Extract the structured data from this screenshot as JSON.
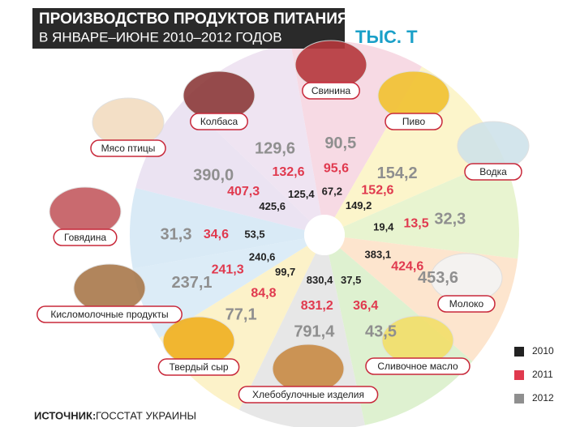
{
  "chart_data": {
    "type": "radial",
    "title": "ПРОИЗВОДСТВО ПРОДУКТОВ ПИТАНИЯ",
    "subtitle": "В ЯНВАРЕ–ИЮНЕ 2010–2012 ГОДОВ",
    "unit": "ТЫС. Т",
    "source_label": "ИСТОЧНИК:",
    "source": "ГОССТАТ УКРАИНЫ",
    "categories": [
      "Свинина",
      "Пиво",
      "Водка",
      "Молоко",
      "Сливочное масло",
      "Хлебобулочные изделия",
      "Твердый сыр",
      "Кисломолочные продукты",
      "Говядина",
      "Мясо птицы",
      "Колбаса"
    ],
    "series": [
      {
        "name": "2010",
        "color": "#222222",
        "values": [
          67.2,
          149.2,
          19.4,
          383.1,
          37.5,
          830.4,
          99.7,
          240.6,
          53.5,
          425.6,
          125.4
        ],
        "value_labels": [
          "67,2",
          "149,2",
          "19,4",
          "383,1",
          "37,5",
          "830,4",
          "99,7",
          "240,6",
          "53,5",
          "425,6",
          "125,4"
        ]
      },
      {
        "name": "2011",
        "color": "#e0394e",
        "values": [
          95.6,
          152.6,
          13.5,
          424.6,
          36.4,
          831.2,
          84.8,
          241.3,
          34.6,
          407.3,
          132.6
        ],
        "value_labels": [
          "95,6",
          "152,6",
          "13,5",
          "424,6",
          "36,4",
          "831,2",
          "84,8",
          "241,3",
          "34,6",
          "407,3",
          "132,6"
        ]
      },
      {
        "name": "2012",
        "color": "#8f8f8f",
        "values": [
          90.5,
          154.2,
          32.3,
          453.6,
          43.5,
          791.4,
          77.1,
          237.1,
          31.3,
          390.0,
          129.6
        ],
        "value_labels": [
          "90,5",
          "154,2",
          "32,3",
          "453,6",
          "43,5",
          "791,4",
          "77,1",
          "237,1",
          "31,3",
          "390,0",
          "129,6"
        ]
      }
    ]
  }
}
